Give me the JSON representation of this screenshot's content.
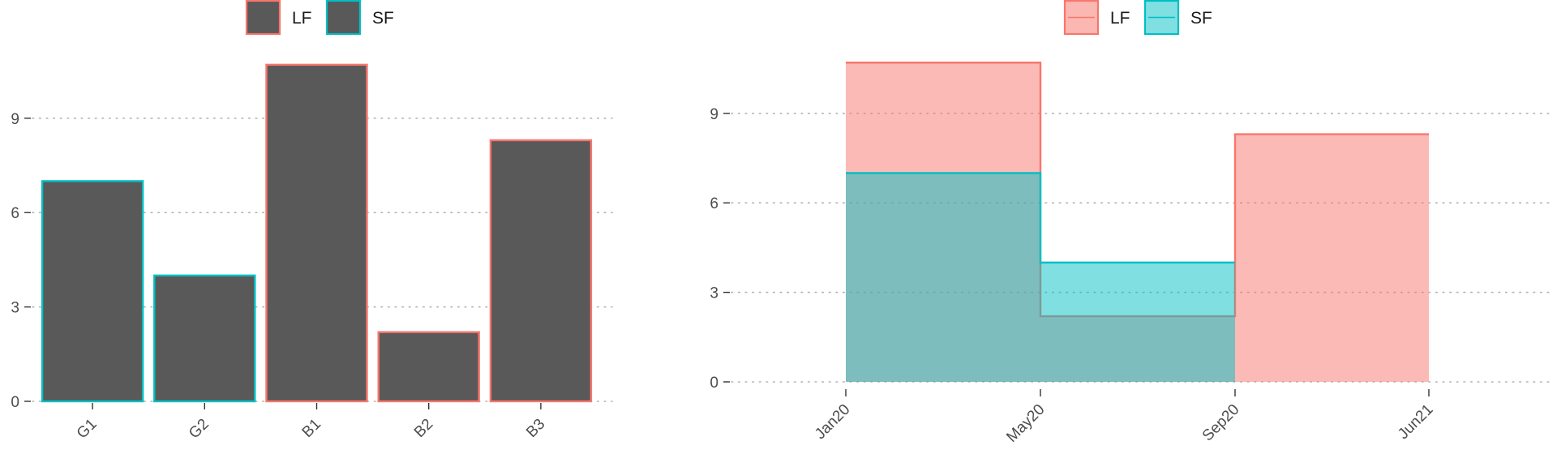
{
  "colors": {
    "LF": "#F8766D",
    "SF": "#00BFC4",
    "bar_fill": "#595959",
    "grid": "#b3b3b3",
    "text": "#4d4d4d"
  },
  "chart_data": [
    {
      "type": "bar",
      "legend": {
        "position": "top",
        "entries": [
          {
            "label": "LF",
            "color": "#F8766D"
          },
          {
            "label": "SF",
            "color": "#00BFC4"
          }
        ]
      },
      "categories": [
        "G1",
        "G2",
        "B1",
        "B2",
        "B3"
      ],
      "values": [
        7.0,
        4.0,
        10.7,
        2.2,
        8.3
      ],
      "group": [
        "SF",
        "SF",
        "LF",
        "LF",
        "LF"
      ],
      "ylim": [
        0,
        11.2
      ],
      "yticks": [
        0,
        3,
        6,
        9
      ],
      "grid": "horizontal dotted",
      "title": "",
      "xlabel": "",
      "ylabel": ""
    },
    {
      "type": "area",
      "step": true,
      "legend": {
        "position": "top",
        "entries": [
          {
            "label": "LF",
            "color": "#F8766D"
          },
          {
            "label": "SF",
            "color": "#00BFC4"
          }
        ]
      },
      "x_ticks": [
        "Jan20",
        "May20",
        "Sep20",
        "Jun21"
      ],
      "series": [
        {
          "name": "LF",
          "x": [
            "Jan20",
            "May20",
            "Sep20",
            "Jun21"
          ],
          "values": [
            10.7,
            2.2,
            8.3,
            8.3
          ]
        },
        {
          "name": "SF",
          "x": [
            "Jan20",
            "May20",
            "Sep20"
          ],
          "values": [
            7.0,
            4.0,
            4.0
          ]
        }
      ],
      "ylim": [
        0,
        11.2
      ],
      "yticks": [
        0,
        3,
        6,
        9
      ],
      "grid": "horizontal dotted",
      "title": "",
      "xlabel": "",
      "ylabel": ""
    }
  ]
}
